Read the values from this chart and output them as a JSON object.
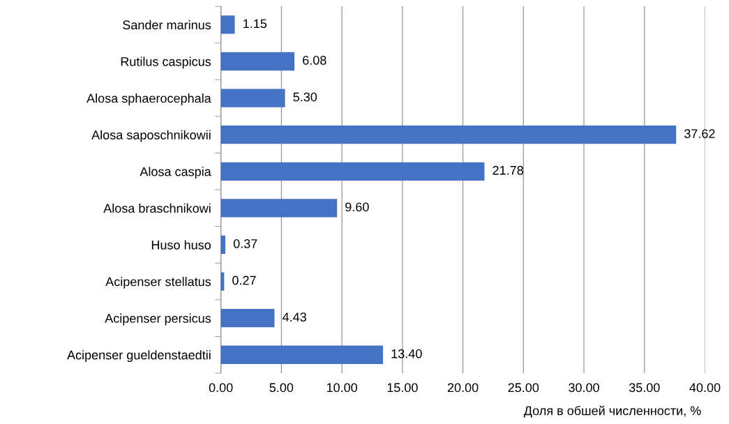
{
  "chart_data": {
    "type": "bar",
    "orientation": "horizontal",
    "categories": [
      "Sander marinus",
      "Rutilus caspicus",
      "Alosa sphaerocephala",
      "Alosa saposchnikowii",
      "Alosa caspia",
      "Alosa braschnikowi",
      "Huso huso",
      "Acipenser stellatus",
      "Acipenser persicus",
      "Acipenser gueldenstaedtii"
    ],
    "values": [
      1.15,
      6.08,
      5.3,
      37.62,
      21.78,
      9.6,
      0.37,
      0.27,
      4.43,
      13.4
    ],
    "value_labels": [
      "1.15",
      "6.08",
      "5.30",
      "37.62",
      "21.78",
      "9.60",
      "0.37",
      "0.27",
      "4.43",
      "13.40"
    ],
    "color": "#4472c4",
    "xlabel": "Доля в обшей численности, %",
    "xlim": [
      0,
      40
    ],
    "xticks": [
      {
        "value": 0,
        "label": "0.00"
      },
      {
        "value": 5,
        "label": "5.00"
      },
      {
        "value": 10,
        "label": "10.00"
      },
      {
        "value": 15,
        "label": "15.00"
      },
      {
        "value": 20,
        "label": "20.00"
      },
      {
        "value": 25,
        "label": "25.00"
      },
      {
        "value": 30,
        "label": "30.00"
      },
      {
        "value": 35,
        "label": "35.00"
      },
      {
        "value": 40,
        "label": "40.00"
      }
    ],
    "grid": "x",
    "legend": false
  }
}
